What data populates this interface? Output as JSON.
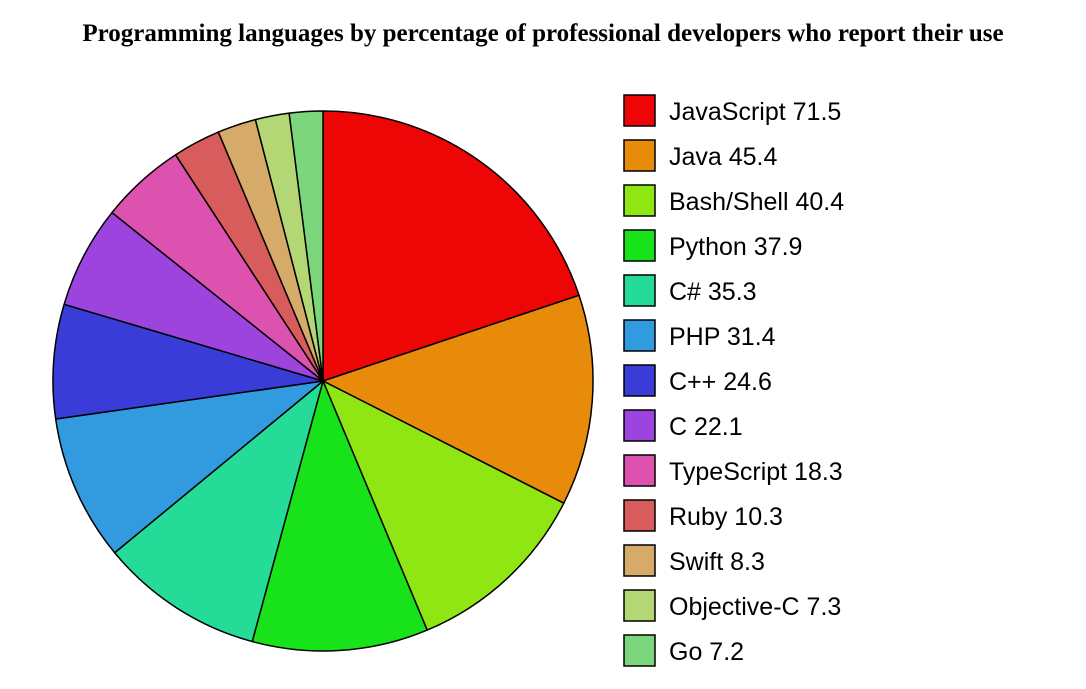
{
  "chart_data": {
    "type": "pie",
    "title": "Programming languages by percentage of professional developers who report their use",
    "legend_position": "right",
    "slices": [
      {
        "label": "JavaScript",
        "value": 71.5,
        "color": "#ee0606"
      },
      {
        "label": "Java",
        "value": 45.4,
        "color": "#e88b0a"
      },
      {
        "label": "Bash/Shell",
        "value": 40.4,
        "color": "#90e612"
      },
      {
        "label": "Python",
        "value": 37.9,
        "color": "#18e21a"
      },
      {
        "label": "C#",
        "value": 35.3,
        "color": "#24dc98"
      },
      {
        "label": "PHP",
        "value": 31.4,
        "color": "#329ade"
      },
      {
        "label": "C++",
        "value": 24.6,
        "color": "#3a3cd8"
      },
      {
        "label": "C",
        "value": 22.1,
        "color": "#9d44de"
      },
      {
        "label": "TypeScript",
        "value": 18.3,
        "color": "#dc52ae"
      },
      {
        "label": "Ruby",
        "value": 10.3,
        "color": "#d85c5c"
      },
      {
        "label": "Swift",
        "value": 8.3,
        "color": "#d6aa68"
      },
      {
        "label": "Objective-C",
        "value": 7.3,
        "color": "#b2d774"
      },
      {
        "label": "Go",
        "value": 7.2,
        "color": "#7cd67c"
      }
    ]
  }
}
